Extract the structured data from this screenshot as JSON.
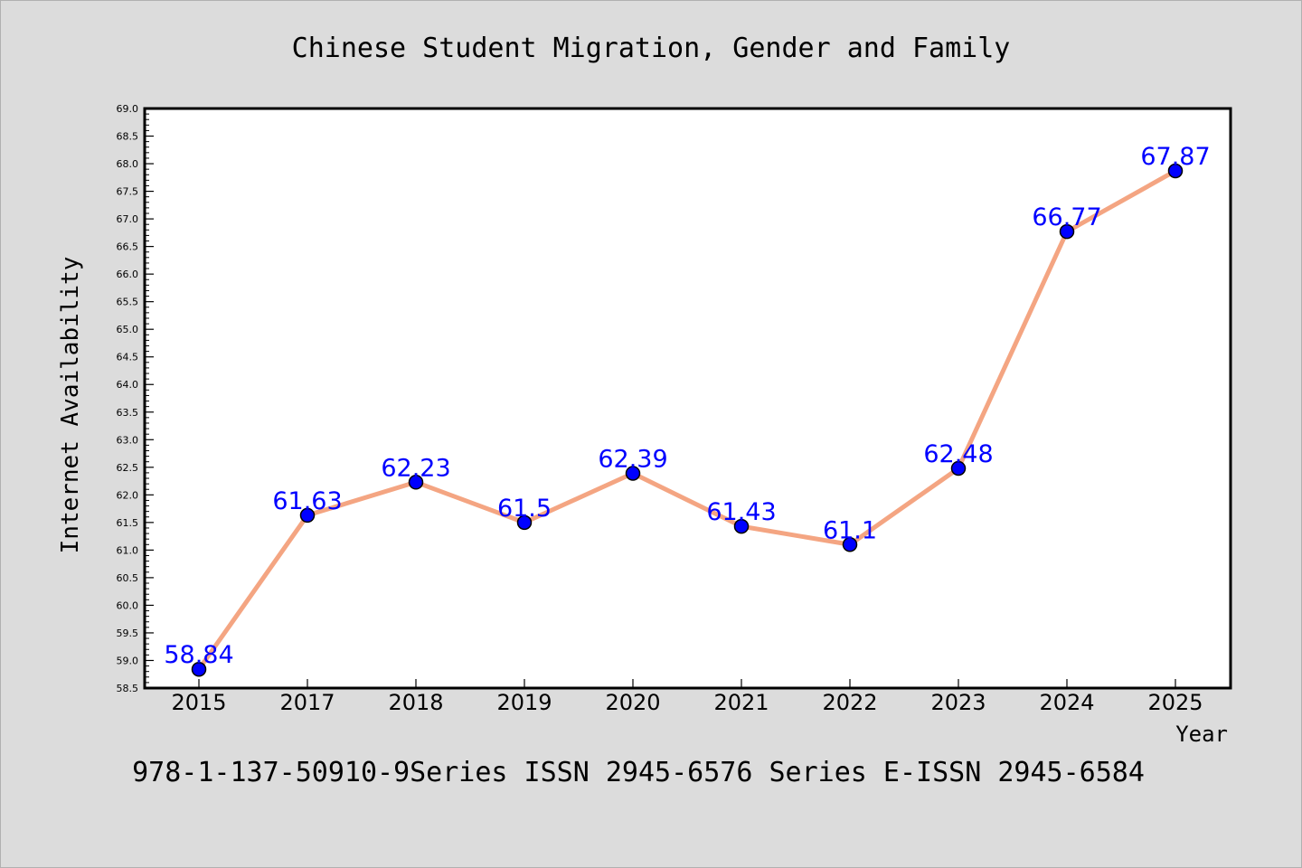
{
  "chart_data": {
    "type": "line",
    "title": "Chinese Student Migration, Gender and Family",
    "subtitle": "978-1-137-50910-9Series ISSN 2945-6576 Series E-ISSN 2945-6584",
    "xlabel": "Year",
    "ylabel": "Internet Availability",
    "categories": [
      "2015",
      "2017",
      "2018",
      "2019",
      "2020",
      "2021",
      "2022",
      "2023",
      "2024",
      "2025"
    ],
    "values": [
      58.84,
      61.63,
      62.23,
      61.5,
      62.39,
      61.43,
      61.1,
      62.48,
      66.77,
      67.87
    ],
    "data_labels": [
      "58.84",
      "61.63",
      "62.23",
      "61.5",
      "62.39",
      "61.43",
      "61.1",
      "62.48",
      "66.77",
      "67.87"
    ],
    "ylim": [
      58.5,
      69.0
    ],
    "yticks": [
      "58.5",
      "59.0",
      "59.5",
      "60.0",
      "60.5",
      "61.0",
      "61.5",
      "62.0",
      "62.5",
      "63.0",
      "63.5",
      "64.0",
      "64.5",
      "65.0",
      "65.5",
      "66.0",
      "66.5",
      "67.0",
      "67.5",
      "68.0",
      "68.5",
      "69.0"
    ],
    "grid": false,
    "colors": {
      "background": "#dcdcdc",
      "plot_background": "#ffffff",
      "line": "#f4a582",
      "marker": "#0000ff",
      "label": "#0000ff"
    }
  }
}
